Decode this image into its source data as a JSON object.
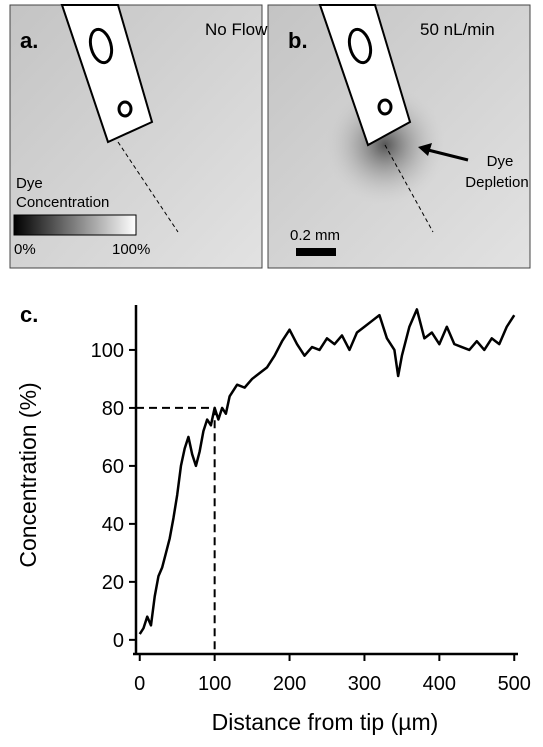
{
  "panels": [
    {
      "label": "a.",
      "condition": "No Flow",
      "colorbar_title": [
        "Dye",
        "Concentration"
      ],
      "colorbar_min": "0%",
      "colorbar_max": "100%"
    },
    {
      "label": "b.",
      "condition": "50 nL/min",
      "annotation": [
        "Dye",
        "Depletion"
      ],
      "scale_bar": "0.2 mm"
    }
  ],
  "chart_data": {
    "type": "line",
    "panel_label": "c.",
    "x_label": "Distance from tip (µm)",
    "y_label": "Concentration (%)",
    "x": [
      0,
      5,
      10,
      15,
      20,
      25,
      30,
      35,
      40,
      45,
      50,
      55,
      60,
      65,
      70,
      75,
      80,
      85,
      90,
      95,
      100,
      105,
      110,
      115,
      120,
      130,
      140,
      150,
      160,
      170,
      180,
      190,
      200,
      210,
      220,
      230,
      240,
      250,
      260,
      270,
      280,
      290,
      300,
      310,
      320,
      330,
      340,
      345,
      350,
      360,
      370,
      380,
      390,
      400,
      410,
      420,
      430,
      440,
      450,
      460,
      470,
      480,
      490,
      500
    ],
    "series": [
      {
        "color": "#000000",
        "values": [
          2,
          4,
          8,
          5,
          15,
          22,
          25,
          30,
          35,
          42,
          50,
          60,
          66,
          70,
          64,
          60,
          65,
          72,
          76,
          74,
          80,
          76,
          80,
          78,
          84,
          88,
          87,
          90,
          92,
          94,
          98,
          103,
          107,
          102,
          98,
          101,
          100,
          104,
          102,
          105,
          100,
          106,
          108,
          110,
          112,
          104,
          100,
          91,
          98,
          108,
          114,
          104,
          106,
          102,
          108,
          102,
          101,
          100,
          103,
          100,
          104,
          102,
          108,
          112
        ]
      }
    ],
    "reference": {
      "x": 100,
      "y": 80
    },
    "xlim": [
      -5,
      505
    ],
    "ylim": [
      -3.5,
      115.5
    ],
    "xticks": [
      0,
      100,
      200,
      300,
      400,
      500
    ],
    "yticks": [
      0,
      20,
      40,
      60,
      80,
      100
    ]
  }
}
